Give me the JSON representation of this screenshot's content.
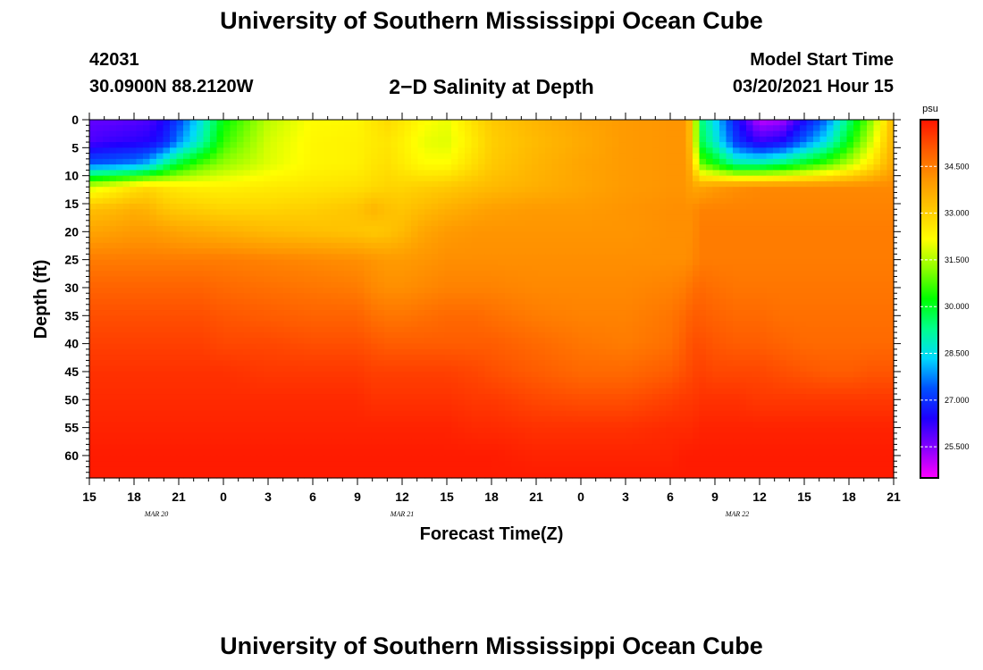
{
  "page": {
    "title_top": "University of Southern Mississippi Ocean Cube",
    "title_bottom": "University of Southern Mississippi Ocean Cube",
    "station_id": "42031",
    "station_location": "30.0900N 88.2120W",
    "plot_title": "2−D Salinity at Depth",
    "model_start_label": "Model Start Time",
    "model_start_value": "03/20/2021 Hour 15"
  },
  "chart_data": {
    "type": "heatmap",
    "title": "2−D Salinity at Depth",
    "xlabel": "Forecast Time(Z)",
    "ylabel": "Depth (ft)",
    "x_tick_labels": [
      "15",
      "18",
      "21",
      "0",
      "3",
      "6",
      "9",
      "12",
      "15",
      "18",
      "21",
      "0",
      "3",
      "6",
      "9",
      "12",
      "15",
      "18",
      "21"
    ],
    "x_range_hours": [
      0,
      54
    ],
    "date_labels": [
      {
        "text": "MAR  20",
        "hour": 4.5
      },
      {
        "text": "MAR  21",
        "hour": 21
      },
      {
        "text": "MAR  22",
        "hour": 43.5
      }
    ],
    "y_ticks": [
      0,
      5,
      10,
      15,
      20,
      25,
      30,
      35,
      40,
      45,
      50,
      55,
      60
    ],
    "y_range_ft": [
      0,
      64
    ],
    "colorbar": {
      "unit": "psu",
      "min": 24.5,
      "max": 36.0,
      "labels": [
        "34.500",
        "33.000",
        "31.500",
        "30.000",
        "28.500",
        "27.000",
        "25.500"
      ],
      "label_values": [
        34.5,
        33.0,
        31.5,
        30.0,
        28.5,
        27.0,
        25.5
      ],
      "colors": [
        "#ff00ff",
        "#8800ff",
        "#1e00ff",
        "#0050ff",
        "#00d8ff",
        "#00ff8c",
        "#00ff00",
        "#8cff00",
        "#ffff00",
        "#ffc800",
        "#ff9600",
        "#ff5a00",
        "#ff1400"
      ]
    },
    "field": {
      "hours": [
        0,
        1.5,
        3,
        4,
        5,
        6,
        7.5,
        9,
        12,
        15,
        18,
        19,
        20,
        21,
        22.5,
        24,
        26,
        27,
        30,
        33,
        36,
        39,
        40,
        40.5,
        41,
        42,
        43.5,
        45,
        46.5,
        48,
        49.5,
        51,
        52.5,
        54
      ],
      "depths": [
        0,
        4,
        8,
        12,
        16,
        20,
        25,
        30,
        35,
        40,
        45,
        50,
        55,
        60,
        64
      ],
      "values": [
        [
          25.8,
          25.8,
          25.9,
          26.0,
          26.4,
          27.2,
          28.6,
          30.2,
          31.6,
          32.2,
          32.3,
          32.6,
          32.8,
          32.6,
          32.2,
          32.0,
          32.8,
          33.1,
          33.5,
          33.8,
          34.0,
          34.1,
          34.1,
          33.0,
          29.5,
          28.4,
          26.6,
          25.0,
          25.2,
          26.5,
          27.6,
          29.5,
          31.2,
          33.5
        ],
        [
          26.0,
          26.2,
          26.3,
          26.4,
          26.8,
          27.8,
          29.0,
          30.6,
          31.8,
          32.3,
          32.4,
          32.5,
          32.6,
          32.4,
          32.0,
          31.9,
          32.6,
          33.0,
          33.4,
          33.7,
          34.0,
          34.1,
          34.1,
          33.0,
          29.8,
          28.8,
          27.0,
          26.2,
          26.5,
          27.6,
          28.6,
          30.2,
          31.8,
          33.6
        ],
        [
          27.5,
          27.6,
          27.8,
          28.2,
          29.2,
          30.0,
          30.8,
          31.3,
          31.9,
          32.3,
          32.4,
          32.6,
          32.7,
          32.5,
          32.2,
          32.2,
          32.8,
          33.1,
          33.5,
          33.8,
          34.0,
          34.1,
          34.1,
          33.4,
          31.0,
          30.3,
          29.2,
          29.2,
          29.6,
          30.2,
          30.8,
          31.6,
          32.6,
          33.8
        ],
        [
          31.8,
          32.2,
          32.6,
          32.8,
          32.6,
          32.5,
          32.4,
          32.4,
          32.5,
          32.6,
          32.7,
          32.8,
          32.9,
          32.9,
          33.0,
          33.1,
          33.3,
          33.4,
          33.6,
          33.8,
          34.0,
          34.1,
          34.1,
          33.8,
          33.8,
          34.0,
          34.2,
          34.3,
          34.3,
          34.3,
          34.3,
          34.3,
          34.3,
          34.3
        ],
        [
          33.3,
          33.4,
          33.6,
          33.5,
          33.2,
          33.1,
          33.0,
          32.9,
          32.9,
          33.0,
          33.2,
          33.5,
          33.3,
          33.2,
          33.4,
          33.6,
          33.8,
          33.9,
          34.0,
          34.0,
          34.1,
          34.2,
          34.2,
          34.2,
          34.4,
          34.4,
          34.4,
          34.4,
          34.4,
          34.4,
          34.4,
          34.4,
          34.4,
          34.4
        ],
        [
          33.8,
          33.9,
          34.0,
          34.0,
          33.9,
          33.8,
          33.7,
          33.6,
          33.4,
          33.3,
          33.2,
          33.1,
          33.2,
          33.4,
          33.8,
          34.0,
          34.1,
          34.1,
          34.1,
          34.1,
          34.1,
          34.2,
          34.2,
          34.2,
          34.5,
          34.5,
          34.5,
          34.5,
          34.5,
          34.5,
          34.5,
          34.5,
          34.5,
          34.5
        ],
        [
          34.5,
          34.5,
          34.5,
          34.5,
          34.5,
          34.5,
          34.5,
          34.5,
          34.4,
          34.3,
          34.2,
          34.1,
          34.0,
          34.0,
          34.1,
          34.2,
          34.2,
          34.2,
          34.2,
          34.2,
          34.2,
          34.2,
          34.2,
          34.3,
          34.5,
          34.5,
          34.5,
          34.5,
          34.5,
          34.5,
          34.5,
          34.5,
          34.5,
          34.5
        ],
        [
          34.9,
          34.9,
          34.9,
          34.9,
          34.9,
          34.9,
          34.9,
          34.8,
          34.7,
          34.6,
          34.5,
          34.3,
          34.2,
          34.2,
          34.3,
          34.4,
          34.4,
          34.4,
          34.3,
          34.3,
          34.3,
          34.4,
          34.5,
          34.7,
          34.8,
          34.7,
          34.6,
          34.6,
          34.6,
          34.6,
          34.6,
          34.6,
          34.6,
          34.6
        ],
        [
          35.2,
          35.2,
          35.2,
          35.2,
          35.2,
          35.2,
          35.2,
          35.1,
          35.0,
          34.9,
          34.9,
          34.7,
          34.6,
          34.6,
          34.7,
          34.8,
          34.8,
          34.7,
          34.5,
          34.4,
          34.4,
          34.6,
          34.8,
          35.0,
          35.0,
          34.9,
          34.8,
          34.8,
          34.7,
          34.7,
          34.7,
          34.7,
          34.7,
          34.7
        ],
        [
          35.4,
          35.4,
          35.4,
          35.4,
          35.4,
          35.4,
          35.4,
          35.3,
          35.3,
          35.2,
          35.2,
          35.1,
          35.0,
          35.0,
          35.0,
          35.0,
          35.0,
          35.0,
          34.8,
          34.6,
          34.5,
          34.7,
          35.0,
          35.2,
          35.2,
          35.1,
          35.0,
          35.0,
          34.9,
          34.8,
          34.8,
          34.8,
          34.8,
          34.8
        ],
        [
          35.6,
          35.6,
          35.6,
          35.6,
          35.6,
          35.6,
          35.6,
          35.6,
          35.5,
          35.5,
          35.5,
          35.4,
          35.4,
          35.4,
          35.4,
          35.4,
          35.3,
          35.2,
          35.0,
          34.8,
          34.8,
          35.0,
          35.2,
          35.3,
          35.4,
          35.3,
          35.3,
          35.3,
          35.2,
          35.1,
          35.0,
          35.0,
          35.1,
          35.1
        ],
        [
          35.7,
          35.7,
          35.7,
          35.7,
          35.7,
          35.7,
          35.7,
          35.7,
          35.7,
          35.7,
          35.7,
          35.6,
          35.6,
          35.6,
          35.6,
          35.6,
          35.5,
          35.5,
          35.3,
          35.2,
          35.2,
          35.4,
          35.5,
          35.5,
          35.6,
          35.6,
          35.6,
          35.5,
          35.5,
          35.5,
          35.5,
          35.5,
          35.5,
          35.5
        ],
        [
          35.8,
          35.8,
          35.8,
          35.8,
          35.8,
          35.8,
          35.8,
          35.8,
          35.8,
          35.8,
          35.8,
          35.8,
          35.8,
          35.8,
          35.8,
          35.8,
          35.7,
          35.7,
          35.6,
          35.6,
          35.6,
          35.7,
          35.7,
          35.7,
          35.8,
          35.8,
          35.8,
          35.8,
          35.8,
          35.8,
          35.8,
          35.8,
          35.8,
          35.8
        ],
        [
          35.9,
          35.9,
          35.9,
          35.9,
          35.9,
          35.9,
          35.9,
          35.9,
          35.9,
          35.9,
          35.9,
          35.9,
          35.9,
          35.9,
          35.9,
          35.9,
          35.9,
          35.9,
          35.8,
          35.8,
          35.8,
          35.8,
          35.9,
          35.9,
          35.9,
          35.9,
          35.9,
          35.9,
          35.9,
          35.9,
          35.9,
          35.9,
          35.9,
          35.9
        ],
        [
          35.9,
          35.9,
          35.9,
          35.9,
          35.9,
          35.9,
          35.9,
          35.9,
          35.9,
          35.9,
          35.9,
          35.9,
          35.9,
          35.9,
          35.9,
          35.9,
          35.9,
          35.9,
          35.9,
          35.9,
          35.9,
          35.9,
          35.9,
          35.9,
          35.9,
          35.9,
          35.9,
          35.9,
          35.9,
          35.9,
          35.9,
          35.9,
          35.9,
          35.9
        ]
      ]
    }
  }
}
